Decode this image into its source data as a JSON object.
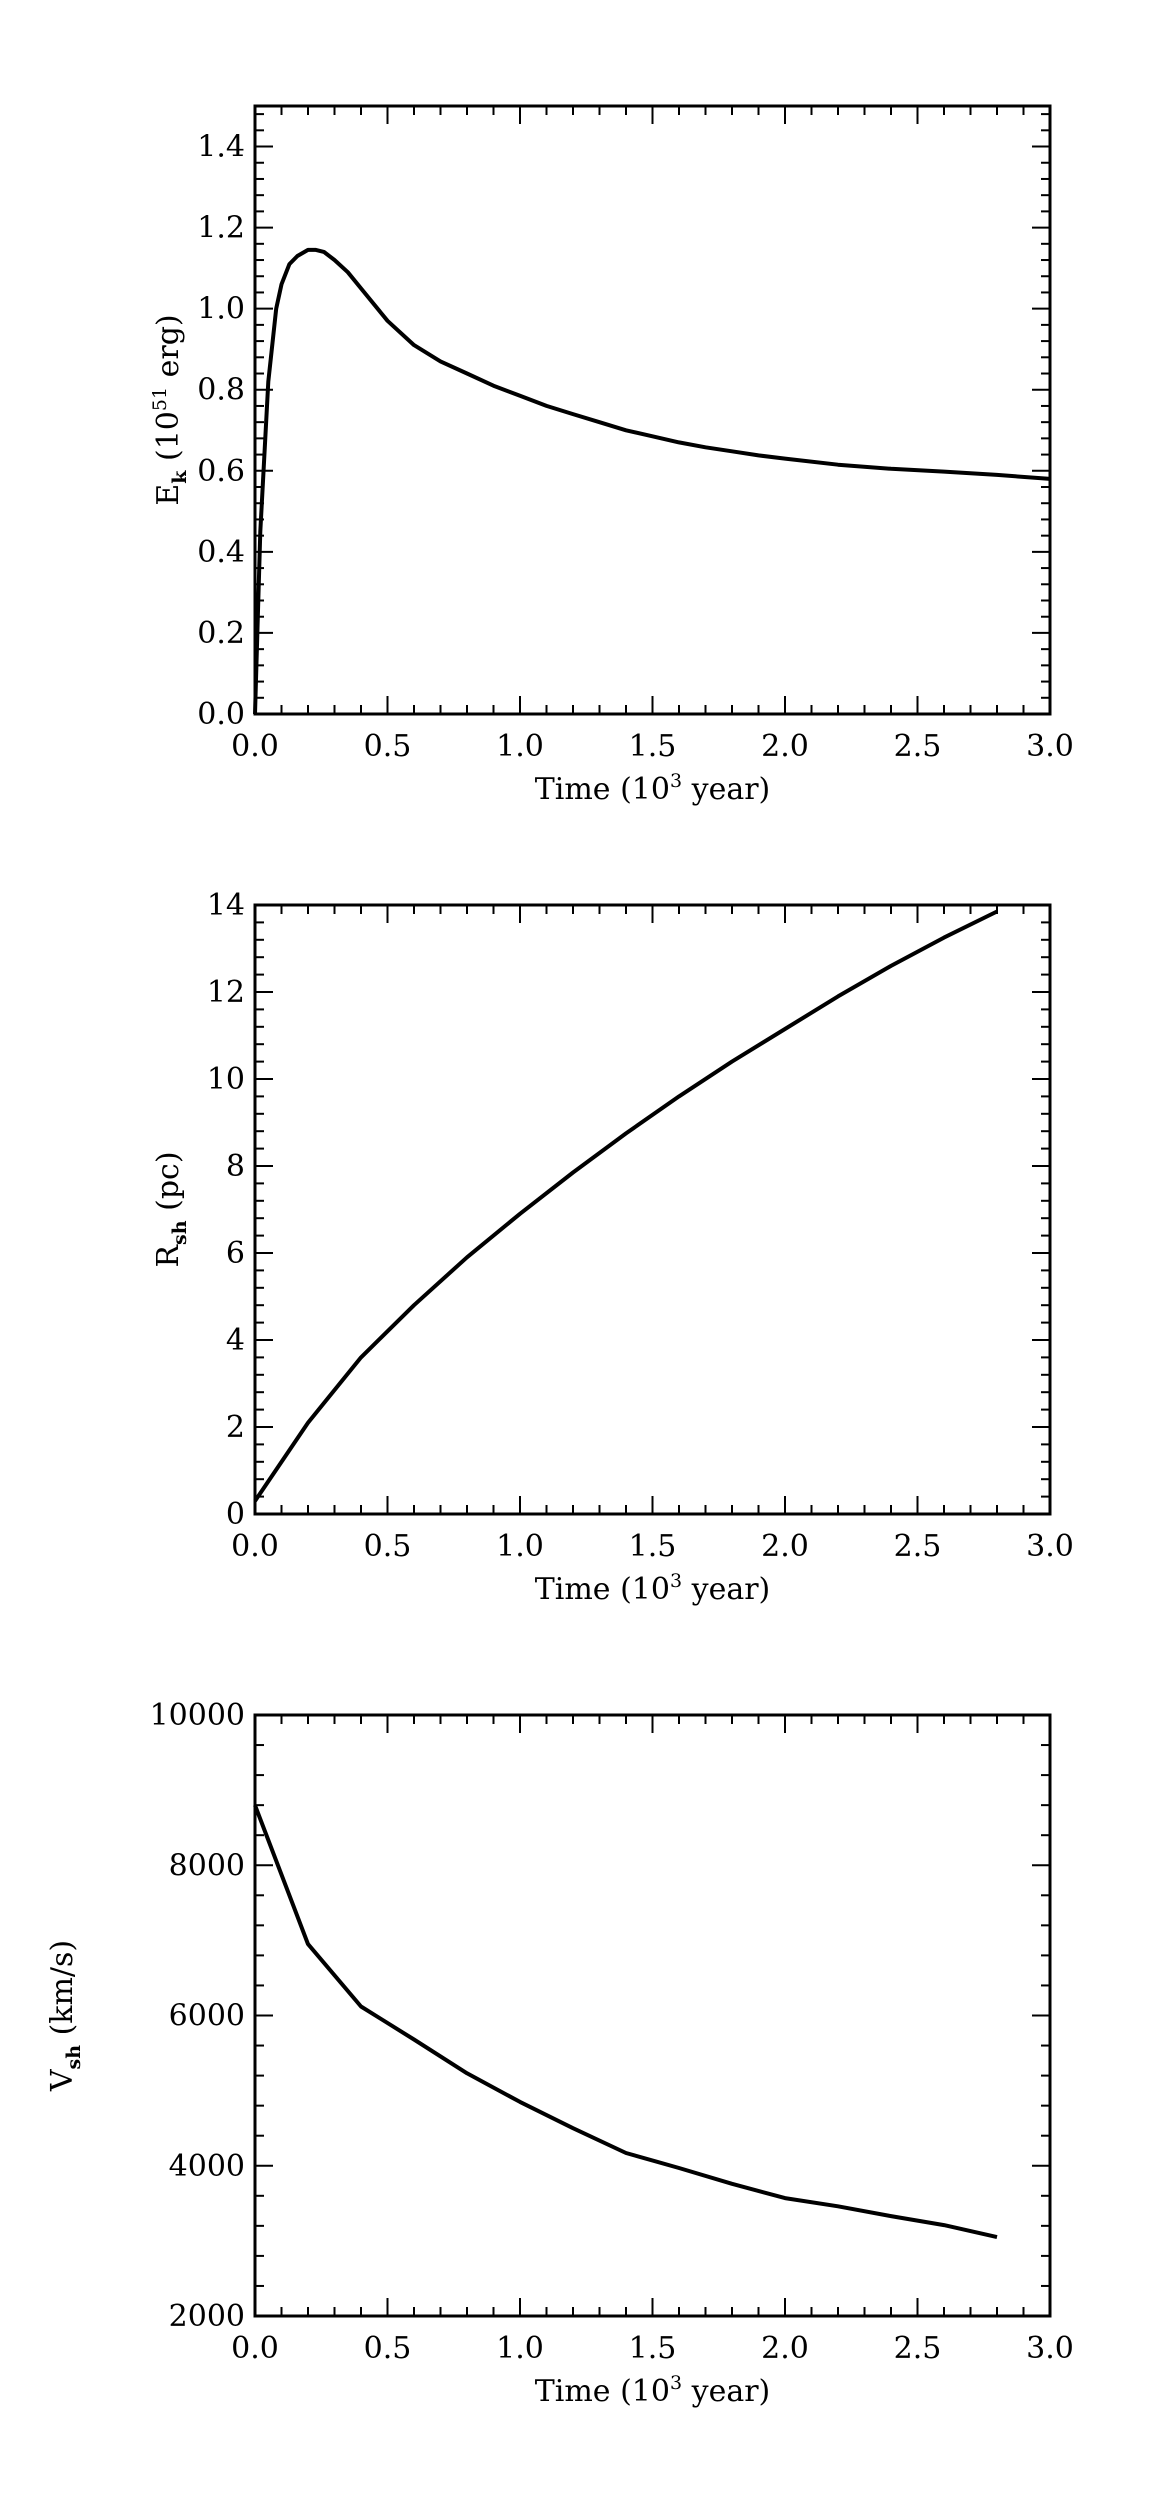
{
  "chart_data": [
    {
      "type": "line",
      "xlabel": {
        "main": "Time (10",
        "sup": "3",
        "tail": " year)"
      },
      "ylabel": {
        "main": "E",
        "sub": "k",
        "mid": " (10",
        "sup": "51",
        "tail": " erg)"
      },
      "xlim": [
        0,
        3
      ],
      "ylim": [
        0,
        1.5
      ],
      "xticks": [
        0,
        0.5,
        1,
        1.5,
        2,
        2.5,
        3
      ],
      "xtick_labels": [
        "0.0",
        "0.5",
        "1.0",
        "1.5",
        "2.0",
        "2.5",
        "3.0"
      ],
      "yticks": [
        0,
        0.2,
        0.4,
        0.6,
        0.8,
        1.0,
        1.2,
        1.4
      ],
      "ytick_labels": [
        "0.0",
        "0.2",
        "0.4",
        "0.6",
        "0.8",
        "1.0",
        "1.2",
        "1.4"
      ],
      "series": [
        {
          "x": [
            0,
            0.02,
            0.05,
            0.08,
            0.1,
            0.13,
            0.16,
            0.2,
            0.23,
            0.26,
            0.3,
            0.35,
            0.4,
            0.5,
            0.6,
            0.7,
            0.8,
            0.9,
            1.0,
            1.1,
            1.2,
            1.3,
            1.4,
            1.5,
            1.6,
            1.7,
            1.8,
            1.9,
            2.0,
            2.2,
            2.4,
            2.6,
            2.8,
            3.0
          ],
          "y": [
            0.0,
            0.45,
            0.82,
            1.0,
            1.06,
            1.11,
            1.13,
            1.145,
            1.145,
            1.14,
            1.12,
            1.09,
            1.05,
            0.97,
            0.91,
            0.87,
            0.84,
            0.81,
            0.785,
            0.76,
            0.74,
            0.72,
            0.7,
            0.685,
            0.67,
            0.658,
            0.648,
            0.638,
            0.63,
            0.615,
            0.605,
            0.598,
            0.59,
            0.58
          ]
        }
      ]
    },
    {
      "type": "line",
      "xlabel": {
        "main": "Time (10",
        "sup": "3",
        "tail": " year)"
      },
      "ylabel": {
        "main": "R",
        "sub": "sh",
        "mid": " (pc)",
        "sup": "",
        "tail": ""
      },
      "xlim": [
        0,
        3
      ],
      "ylim": [
        0,
        14
      ],
      "xticks": [
        0,
        0.5,
        1,
        1.5,
        2,
        2.5,
        3
      ],
      "xtick_labels": [
        "0.0",
        "0.5",
        "1.0",
        "1.5",
        "2.0",
        "2.5",
        "3.0"
      ],
      "yticks": [
        0,
        2,
        4,
        6,
        8,
        10,
        12,
        14
      ],
      "ytick_labels": [
        "0",
        "2",
        "4",
        "6",
        "8",
        "10",
        "12",
        "14"
      ],
      "series": [
        {
          "x": [
            0.0,
            0.2,
            0.4,
            0.6,
            0.8,
            1.0,
            1.2,
            1.4,
            1.6,
            1.8,
            2.0,
            2.2,
            2.4,
            2.6,
            2.8
          ],
          "y": [
            0.3,
            2.1,
            3.6,
            4.8,
            5.9,
            6.9,
            7.85,
            8.75,
            9.6,
            10.4,
            11.15,
            11.9,
            12.6,
            13.25,
            13.85
          ]
        }
      ]
    },
    {
      "type": "line",
      "xlabel": {
        "main": "Time (10",
        "sup": "3",
        "tail": " year)"
      },
      "ylabel": {
        "main": "V",
        "sub": "sh",
        "mid": " (km/s)",
        "sup": "",
        "tail": ""
      },
      "xlim": [
        0,
        3
      ],
      "ylim": [
        2000,
        10000
      ],
      "xticks": [
        0,
        0.5,
        1,
        1.5,
        2,
        2.5,
        3
      ],
      "xtick_labels": [
        "0.0",
        "0.5",
        "1.0",
        "1.5",
        "2.0",
        "2.5",
        "3.0"
      ],
      "yticks": [
        2000,
        4000,
        6000,
        8000,
        10000
      ],
      "ytick_labels": [
        "2000",
        "4000",
        "6000",
        "8000",
        "10000"
      ],
      "series": [
        {
          "x": [
            0.0,
            0.2,
            0.4,
            0.6,
            0.8,
            1.0,
            1.2,
            1.4,
            1.6,
            1.8,
            2.0,
            2.2,
            2.4,
            2.6,
            2.8
          ],
          "y": [
            8800,
            6950,
            6120,
            5680,
            5230,
            4850,
            4500,
            4170,
            3970,
            3760,
            3570,
            3460,
            3330,
            3210,
            3050
          ]
        }
      ]
    }
  ]
}
